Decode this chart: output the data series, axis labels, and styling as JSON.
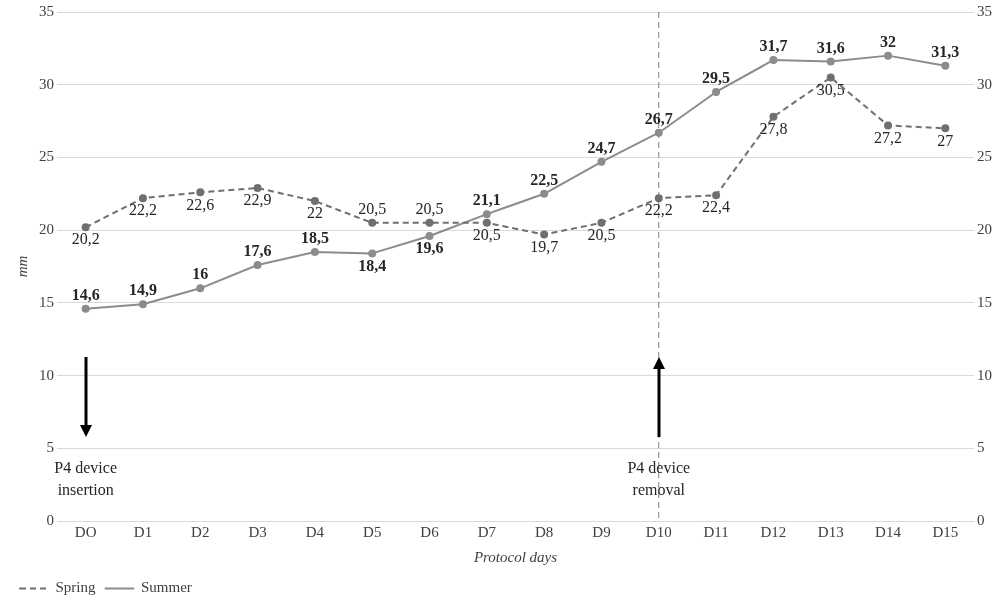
{
  "chart_data": {
    "type": "line",
    "xlabel": "Protocol days",
    "ylabel": "mm",
    "categories": [
      "DO",
      "D1",
      "D2",
      "D3",
      "D4",
      "D5",
      "D6",
      "D7",
      "D8",
      "D9",
      "D10",
      "D11",
      "D12",
      "D13",
      "D14",
      "D15"
    ],
    "series": [
      {
        "name": "Spring",
        "color": "#6f6f6f",
        "line_style": "dashed",
        "values": [
          20.2,
          22.2,
          22.6,
          22.9,
          22,
          20.5,
          20.5,
          20.5,
          19.7,
          20.5,
          22.2,
          22.4,
          27.8,
          30.5,
          27.2,
          27
        ],
        "value_labels": [
          "20,2",
          "22,2",
          "22,6",
          "22,9",
          "22",
          "20,5",
          "20,5",
          "20,5",
          "19,7",
          "20,5",
          "22,2",
          "22,4",
          "27,8",
          "30,5",
          "27,2",
          "27"
        ]
      },
      {
        "name": "Summer",
        "color": "#8c8c8c",
        "line_style": "solid",
        "values": [
          14.6,
          14.9,
          16,
          17.6,
          18.5,
          18.4,
          19.6,
          21.1,
          22.5,
          24.7,
          26.7,
          29.5,
          31.7,
          31.6,
          32,
          31.3
        ],
        "value_labels": [
          "14,6",
          "14,9",
          "16",
          "17,6",
          "18,5",
          "18,4",
          "19,6",
          "21,1",
          "22,5",
          "24,7",
          "26,7",
          "29,5",
          "31,7",
          "31,6",
          "32",
          "31,3"
        ]
      }
    ],
    "ylim": [
      0,
      35
    ],
    "yticks": [
      0,
      5,
      10,
      15,
      20,
      25,
      30,
      35
    ],
    "y2lim": [
      0,
      35
    ],
    "y2ticks": [
      0,
      5,
      10,
      15,
      20,
      25,
      30,
      35
    ],
    "grid": "y",
    "legend": "bottom left",
    "marker": "circle",
    "ref_lines": [
      {
        "axis": "x",
        "value": "D10",
        "color": "#7f7f7f",
        "line_style": "dashed"
      }
    ],
    "annotations": [
      "P4 device insertion",
      "P4 device removal"
    ]
  }
}
